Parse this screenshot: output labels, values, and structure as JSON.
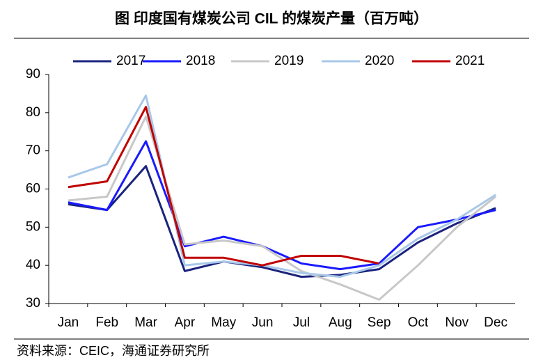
{
  "chart_data": {
    "type": "line",
    "title": "图  印度国有煤炭公司 CIL 的煤炭产量（百万吨）",
    "source": "资料来源：CEIC，海通证券研究所",
    "categories": [
      "Jan",
      "Feb",
      "Mar",
      "Apr",
      "May",
      "Jun",
      "Jul",
      "Aug",
      "Sep",
      "Oct",
      "Nov",
      "Dec"
    ],
    "series": [
      {
        "name": "2017",
        "color": "#1a237e",
        "values": [
          56,
          54.5,
          66,
          38.5,
          41,
          39.5,
          37,
          37.5,
          39,
          46,
          51,
          55
        ]
      },
      {
        "name": "2018",
        "color": "#1a1aff",
        "values": [
          56.5,
          54.5,
          72.5,
          45,
          47.5,
          45,
          40.5,
          39,
          40.5,
          50,
          52,
          54.5
        ]
      },
      {
        "name": "2019",
        "color": "#c8c8c8",
        "values": [
          57,
          58,
          79,
          45.5,
          46.5,
          45,
          38.5,
          35,
          31,
          40,
          50,
          58
        ]
      },
      {
        "name": "2020",
        "color": "#a8c8e8",
        "values": [
          63,
          66.5,
          84.5,
          40,
          41,
          40,
          38,
          37,
          40,
          47,
          52,
          58.5
        ]
      },
      {
        "name": "2021",
        "color": "#c00000",
        "values": [
          60.5,
          62,
          81.5,
          42,
          42,
          40,
          42.5,
          42.5,
          40.5,
          null,
          null,
          null
        ]
      }
    ],
    "ylim": [
      30,
      90
    ],
    "yticks": [
      30,
      40,
      50,
      60,
      70,
      80,
      90
    ],
    "grid": false,
    "legend": "top"
  }
}
